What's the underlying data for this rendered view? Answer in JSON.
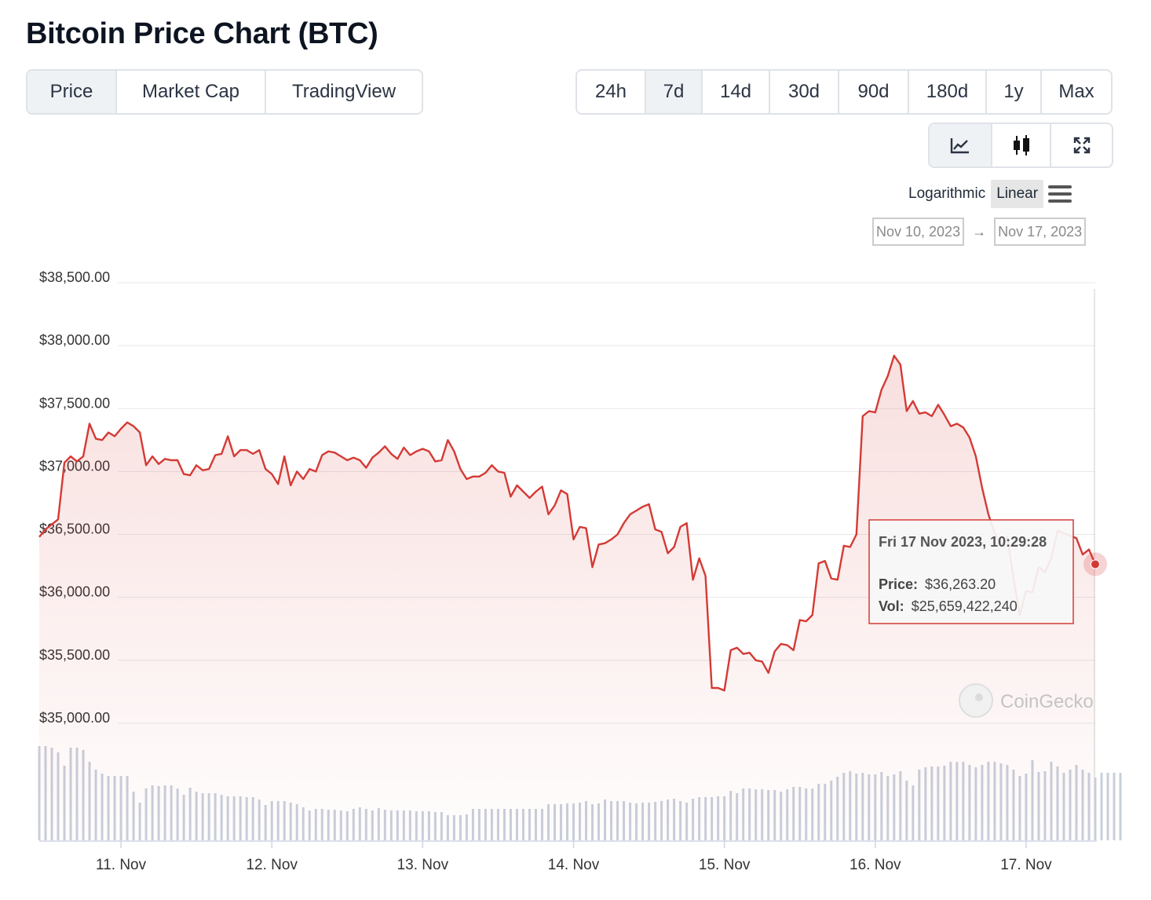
{
  "title": "Bitcoin Price Chart (BTC)",
  "metric_tabs": [
    {
      "label": "Price",
      "active": true
    },
    {
      "label": "Market Cap",
      "active": false
    },
    {
      "label": "TradingView",
      "active": false
    }
  ],
  "range_tabs": [
    {
      "label": "24h",
      "active": false
    },
    {
      "label": "7d",
      "active": true
    },
    {
      "label": "14d",
      "active": false
    },
    {
      "label": "30d",
      "active": false
    },
    {
      "label": "90d",
      "active": false
    },
    {
      "label": "180d",
      "active": false
    },
    {
      "label": "1y",
      "active": false
    },
    {
      "label": "Max",
      "active": false
    }
  ],
  "view_tabs": [
    {
      "icon": "line-chart-icon",
      "active": true
    },
    {
      "icon": "candlestick-icon",
      "active": false
    },
    {
      "icon": "expand-icon",
      "active": false
    }
  ],
  "scale": {
    "log_label": "Logarithmic",
    "linear_label": "Linear",
    "selected": "Linear"
  },
  "date_range": {
    "from": "Nov 10, 2023",
    "arrow": "→",
    "to": "Nov 17, 2023"
  },
  "tooltip": {
    "title": "Fri 17 Nov 2023, 10:29:28",
    "price_label": "Price:",
    "price_value": "$36,263.20",
    "vol_label": "Vol:",
    "vol_value": "$25,659,422,240"
  },
  "watermark": "CoinGecko",
  "colors": {
    "line": "#d43a35",
    "volume": "#c8cfdb",
    "grid": "#e8e8e8",
    "tooltip_border": "#d43a35"
  },
  "chart_data": {
    "type": "area",
    "x_start": "2023-11-10T11:00",
    "x_step_hours": 1,
    "ylim": [
      34500,
      38500
    ],
    "ytick_values": [
      35000,
      35500,
      36000,
      36500,
      37000,
      37500,
      38000,
      38500
    ],
    "ytick_labels": [
      "$35,000.00",
      "$35,500.00",
      "$36,000.00",
      "$36,500.00",
      "$37,000.00",
      "$37,500.00",
      "$38,000.00",
      "$38,500.00"
    ],
    "xtick_labels": [
      "11. Nov",
      "12. Nov",
      "13. Nov",
      "14. Nov",
      "15. Nov",
      "16. Nov",
      "17. Nov"
    ],
    "price": [
      36480,
      36540,
      36580,
      36620,
      37070,
      37120,
      37080,
      37120,
      37380,
      37260,
      37250,
      37310,
      37280,
      37340,
      37390,
      37360,
      37310,
      37050,
      37120,
      37060,
      37100,
      37090,
      37090,
      36980,
      36970,
      37050,
      37010,
      37020,
      37130,
      37140,
      37280,
      37120,
      37170,
      37170,
      37140,
      37170,
      37020,
      36980,
      36900,
      37120,
      36890,
      37000,
      36940,
      37020,
      37000,
      37130,
      37160,
      37150,
      37120,
      37090,
      37110,
      37090,
      37030,
      37110,
      37150,
      37200,
      37140,
      37100,
      37190,
      37130,
      37160,
      37180,
      37160,
      37080,
      37090,
      37250,
      37160,
      37020,
      36940,
      36960,
      36960,
      36990,
      37050,
      37000,
      36990,
      36800,
      36890,
      36840,
      36790,
      36840,
      36880,
      36660,
      36730,
      36850,
      36820,
      36460,
      36560,
      36550,
      36240,
      36420,
      36430,
      36460,
      36500,
      36590,
      36660,
      36690,
      36720,
      36740,
      36540,
      36520,
      36350,
      36400,
      36560,
      36590,
      36140,
      36310,
      36170,
      35280,
      35280,
      35260,
      35580,
      35600,
      35550,
      35560,
      35500,
      35490,
      35400,
      35570,
      35630,
      35620,
      35580,
      35820,
      35810,
      35860,
      36270,
      36290,
      36150,
      36140,
      36410,
      36400,
      36500,
      37440,
      37480,
      37470,
      37650,
      37760,
      37920,
      37850,
      37480,
      37560,
      37460,
      37470,
      37440,
      37530,
      37450,
      37360,
      37380,
      37350,
      37270,
      37120,
      36870,
      36660,
      36510,
      36400,
      36480,
      36150,
      35860,
      36050,
      36040,
      36240,
      36200,
      36310,
      36530,
      36510,
      36490,
      36470,
      36340,
      36380,
      36263.2
    ],
    "volume": [
      120,
      120,
      118,
      112,
      95,
      118,
      118,
      115,
      100,
      90,
      85,
      82,
      82,
      82,
      82,
      62,
      48,
      66,
      70,
      69,
      70,
      70,
      66,
      58,
      67,
      62,
      60,
      60,
      60,
      58,
      56,
      56,
      56,
      55,
      55,
      52,
      45,
      50,
      50,
      50,
      48,
      46,
      42,
      38,
      40,
      40,
      39,
      39,
      38,
      37,
      40,
      42,
      40,
      38,
      41,
      39,
      38,
      38,
      38,
      38,
      37,
      37,
      37,
      36,
      36,
      32,
      32,
      32,
      33,
      40,
      40,
      40,
      40,
      40,
      40,
      40,
      40,
      40,
      40,
      40,
      40,
      46,
      46,
      46,
      47,
      47,
      48,
      50,
      46,
      47,
      52,
      50,
      50,
      50,
      48,
      47,
      48,
      48,
      49,
      50,
      52,
      53,
      50,
      48,
      53,
      55,
      55,
      55,
      56,
      56,
      63,
      60,
      66,
      66,
      65,
      65,
      64,
      64,
      62,
      65,
      68,
      68,
      66,
      66,
      72,
      72,
      76,
      81,
      86,
      88,
      85,
      86,
      84,
      84,
      87,
      82,
      84,
      88,
      76,
      70,
      90,
      93,
      94,
      94,
      95,
      100,
      100,
      100,
      96,
      93,
      96,
      100,
      100,
      98,
      96,
      90,
      82,
      85,
      102,
      87,
      88,
      100,
      94,
      86,
      90,
      96,
      90,
      86,
      80,
      86,
      86,
      86,
      86
    ]
  }
}
